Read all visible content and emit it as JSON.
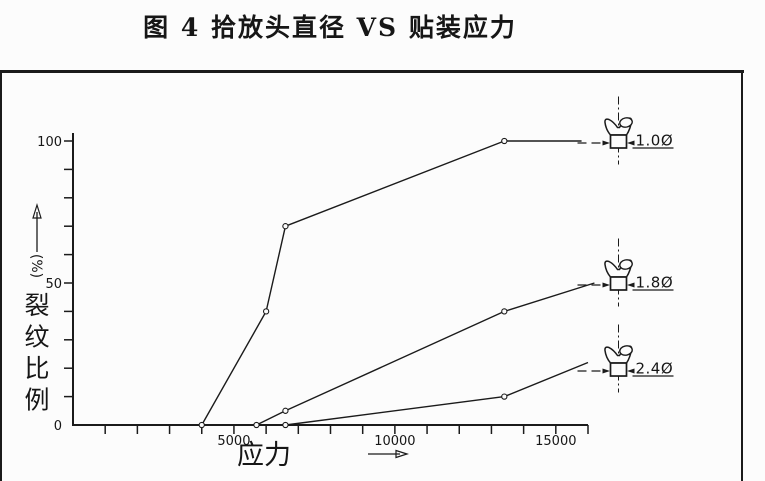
{
  "page": {
    "background": "#fcfcfc"
  },
  "chart_data": {
    "type": "line",
    "title": "图 4 拾放头直径 VS 贴装应力",
    "xlabel": "应力",
    "ylabel": "裂纹比例",
    "ylabel_unit": "(%)",
    "grid": false,
    "legend_position": "right",
    "axes": {
      "x": {
        "min": 0,
        "max": 16000,
        "tick_step": 1000,
        "labeled_ticks": [
          5000,
          10000,
          15000
        ]
      },
      "y": {
        "min": 0,
        "max": 100,
        "tick_step": 10,
        "labeled_ticks": [
          0,
          50,
          100
        ]
      }
    },
    "series": [
      {
        "name": "head-diameter-1-0",
        "label": "1.0Ø",
        "points": [
          [
            4000,
            0
          ],
          [
            6000,
            40
          ],
          [
            6600,
            70
          ],
          [
            13400,
            100
          ],
          [
            15800,
            100
          ]
        ]
      },
      {
        "name": "head-diameter-1-8",
        "label": "1.8Ø",
        "points": [
          [
            5700,
            0
          ],
          [
            6600,
            5
          ],
          [
            13400,
            40
          ],
          [
            16200,
            50
          ]
        ]
      },
      {
        "name": "head-diameter-2-4",
        "label": "2.4Ø",
        "points": [
          [
            6600,
            0
          ],
          [
            13400,
            10
          ],
          [
            16000,
            22
          ]
        ]
      }
    ],
    "colors": {
      "line": "#1b1b1b",
      "text": "#161616"
    }
  }
}
